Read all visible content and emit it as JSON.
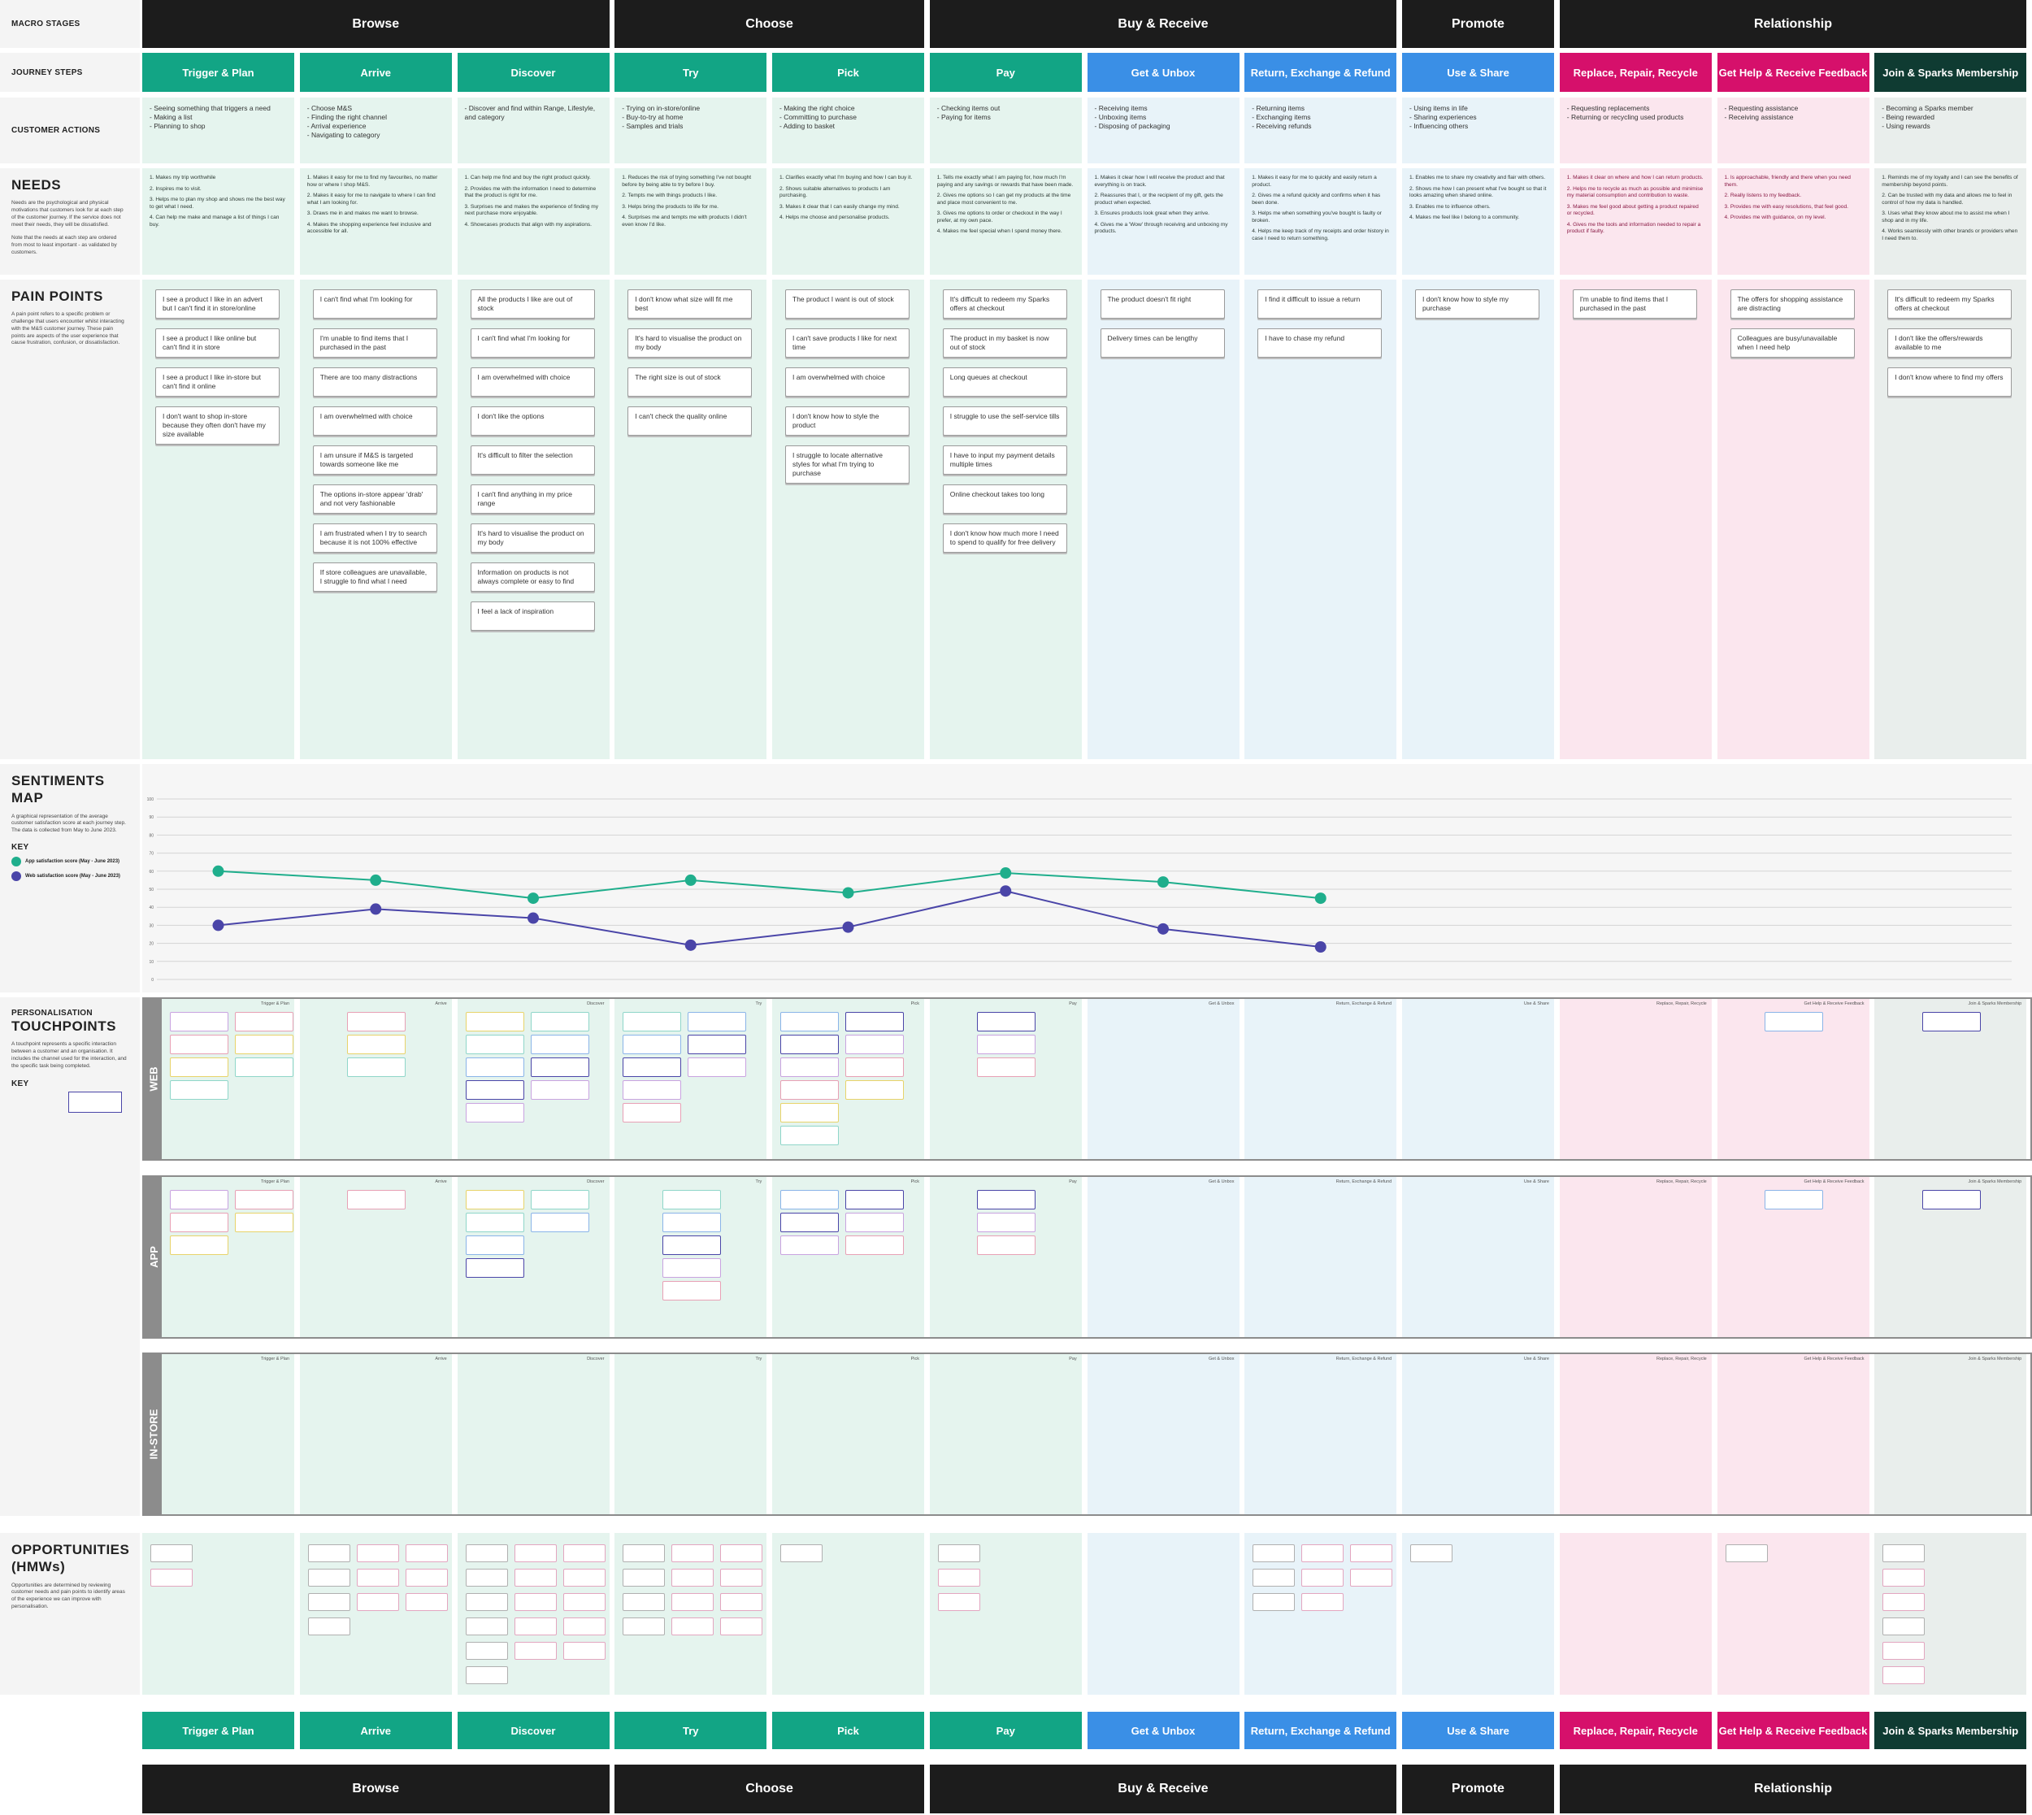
{
  "labels": {
    "macro": "MACRO STAGES",
    "steps": "JOURNEY STEPS",
    "actions": "CUSTOMER ACTIONS",
    "needs": {
      "title": "NEEDS",
      "text": [
        "Needs are the psychological and physical motivations that customers look for at each step of the customer journey. If the service does not meet their needs, they will be dissatisfied.",
        "Note that the needs at each step are ordered from most to least important - as validated by customers."
      ]
    },
    "pain": {
      "title": "PAIN POINTS",
      "text": [
        "A pain point refers to a specific problem or challenge that users encounter whilst interacting with the M&S customer journey. These pain points are aspects of the user experience that cause frustration, confusion, or dissatisfaction."
      ]
    },
    "sentiment": {
      "title": "SENTIMENTS MAP",
      "text": [
        "A graphical representation of the average customer satisfaction score at each journey step. The data is collected from May to June 2023."
      ],
      "key": "KEY"
    },
    "touchpoints": {
      "kicker": "PERSONALISATION",
      "title": "TOUCHPOINTS",
      "text": [
        "A touchpoint represents a specific interaction between a customer and an organisation. It includes the channel used for the interaction, and the specific task being completed."
      ],
      "key": "KEY"
    },
    "opportunities": {
      "title": "OPPORTUNITIES (HMWs)",
      "text": [
        "Opportunities are determined by reviewing customer needs and pain points to identify areas of the experience we can improve with personalisation."
      ]
    }
  },
  "macro_stages": [
    "Browse",
    "Choose",
    "Buy & Receive",
    "Promote",
    "Relationship"
  ],
  "channels": [
    "WEB",
    "APP",
    "IN-STORE"
  ],
  "columns": [
    {
      "step": "Trigger & Plan",
      "color": "#12a585",
      "actions": [
        "- Seeing something that triggers a need",
        "- Making a list",
        "- Planning to shop"
      ],
      "needs": [
        "1. Makes my trip worthwhile",
        "2. Inspires me to visit.",
        "3. Helps me to plan my shop and shows me the best way to get what I need.",
        "4. Can help me make and manage a list of things I can buy."
      ],
      "pain_points": [
        "I see a product I like in an advert but I can't find it in store/online",
        "I see a product I like online but can't find it in store",
        "I see a product I like in-store but can't find it online",
        "I don't want to shop in-store because they often don't have my size available"
      ]
    },
    {
      "step": "Arrive",
      "color": "#12a585",
      "actions": [
        "- Choose M&S",
        "- Finding the right channel",
        "- Arrival experience",
        "- Navigating to category"
      ],
      "needs": [
        "1. Makes it easy for me to find my favourites, no matter how or where I shop M&S.",
        "2. Makes it easy for me to navigate to where I can find what I am looking for.",
        "3. Draws me in and makes me want to browse.",
        "4. Makes the shopping experience feel inclusive and accessible for all."
      ],
      "pain_points": [
        "I can't find what I'm looking for",
        "I'm unable to find items that I purchased in the past",
        "There are too many distractions",
        "I am overwhelmed with choice",
        "I am unsure if M&S is targeted towards someone like me",
        "The options in-store appear 'drab' and not very fashionable",
        "I am frustrated when I try to search because it is not 100% effective",
        "If store colleagues are unavailable, I struggle to find what I need"
      ]
    },
    {
      "step": "Discover",
      "color": "#12a585",
      "actions": [
        "- Discover and find within Range, Lifestyle, and category"
      ],
      "needs": [
        "1. Can help me find and buy the right product quickly.",
        "2. Provides me with the information I need to determine that the product is right for me.",
        "3. Surprises me and makes the experience of finding my next purchase more enjoyable.",
        "4. Showcases products that align with my aspirations."
      ],
      "pain_points": [
        "All the products I like are out of stock",
        "I can't find what I'm looking for",
        "I am overwhelmed with choice",
        "I don't like the options",
        "It's difficult to filter the selection",
        "I can't find anything in my price range",
        "It's hard to visualise the product on my body",
        "Information on products is not always complete or easy to find",
        "I feel a lack of inspiration"
      ]
    },
    {
      "step": "Try",
      "color": "#12a585",
      "actions": [
        "- Trying on in-store/online",
        "- Buy-to-try at home",
        "- Samples and trials"
      ],
      "needs": [
        "1. Reduces the risk of trying something I've not bought before by being able to try before I buy.",
        "2. Tempts me with things products I like.",
        "3. Helps bring the products to life for me.",
        "4. Surprises me and tempts me with products I didn't even know I'd like."
      ],
      "pain_points": [
        "I don't know what size will fit me best",
        "It's hard to visualise the product on my body",
        "The right size is out of stock",
        "I can't check the quality online"
      ]
    },
    {
      "step": "Pick",
      "color": "#12a585",
      "actions": [
        "- Making the right choice",
        "- Committing to purchase",
        "- Adding to basket"
      ],
      "needs": [
        "1. Clarifies exactly what I'm buying and how I can buy it.",
        "2. Shows suitable alternatives to products I am purchasing.",
        "3. Makes it clear that I can easily change my mind.",
        "4. Helps me choose and personalise products."
      ],
      "pain_points": [
        "The product I want is out of stock",
        "I can't save products I like for next time",
        "I am overwhelmed with choice",
        "I don't know how to style the product",
        "I struggle to locate alternative styles for what I'm trying to purchase"
      ]
    },
    {
      "step": "Pay",
      "color": "#12a585",
      "actions": [
        "- Checking items out",
        "- Paying for items"
      ],
      "needs": [
        "1. Tells me exactly what I am paying for, how much I'm paying and any savings or rewards that have been made.",
        "2. Gives me options so I can get my products at the time and place most convenient to me.",
        "3. Gives me options to order or checkout in the way I prefer, at my own pace.",
        "4. Makes me feel special when I spend money there."
      ],
      "pain_points": [
        "It's difficult to redeem my Sparks offers at checkout",
        "The product in my basket is now out of stock",
        "Long queues at checkout",
        "I struggle to use the self-service tills",
        "I have to input my payment details multiple times",
        "Online checkout takes too long",
        "I don't know how much more I need to spend to qualify for free delivery"
      ]
    },
    {
      "step": "Get & Unbox",
      "color": "#3a8fe6",
      "actions": [
        "- Receiving items",
        "- Unboxing items",
        "- Disposing of packaging"
      ],
      "needs": [
        "1. Makes it clear how I will receive the product and that everything is on track.",
        "2. Reassures that I, or the recipient of my gift, gets the product when expected.",
        "3. Ensures products look great when they arrive.",
        "4. Gives me a 'Wow' through receiving and unboxing my products."
      ],
      "pain_points": [
        "The product doesn't fit right",
        "Delivery times can be lengthy"
      ]
    },
    {
      "step": "Return, Exchange & Refund",
      "color": "#3a8fe6",
      "actions": [
        "- Returning items",
        "- Exchanging items",
        "- Receiving refunds"
      ],
      "needs": [
        "1. Makes it easy for me to quickly and easily return a product.",
        "2. Gives me a refund quickly and confirms when it has been done.",
        "3. Helps me when something you've bought is faulty or broken.",
        "4. Helps me keep track of my receipts and order history in case I need to return something."
      ],
      "pain_points": [
        "I find it difficult to issue a return",
        "I have to chase my refund"
      ]
    },
    {
      "step": "Use & Share",
      "color": "#3a8fe6",
      "actions": [
        "- Using items in life",
        "- Sharing experiences",
        "- Influencing others"
      ],
      "needs": [
        "1. Enables me to share my creativity and flair with others.",
        "2. Shows me how I can present what I've bought so that it looks amazing when shared online.",
        "3. Enables me to influence others.",
        "4. Makes me feel like I belong to a community."
      ],
      "pain_points": [
        "I don't know how to style my purchase"
      ]
    },
    {
      "step": "Replace, Repair, Recycle",
      "color": "#d6106b",
      "actions": [
        "- Requesting replacements",
        "- Returning or recycling used products"
      ],
      "needs": [
        "1. Makes it clear on where and how I can return products.",
        "2. Helps me to recycle as much as possible and minimise my material consumption and contribution to waste.",
        "3. Makes me feel good about getting a product repaired or recycled.",
        "4. Gives me the tools and information needed to repair a product if faulty."
      ],
      "pain_points": [
        "I'm unable to find items that I purchased in the past"
      ]
    },
    {
      "step": "Get Help & Receive Feedback",
      "color": "#d6106b",
      "actions": [
        "- Requesting assistance",
        "- Receiving assistance"
      ],
      "needs": [
        "1. Is approachable, friendly and there when you need them.",
        "2. Really listens to my feedback.",
        "3. Provides me with easy resolutions, that feel good.",
        "4. Provides me with guidance, on my level."
      ],
      "pain_points": [
        "The offers for shopping assistance are distracting",
        "Colleagues are busy/unavailable when I need help"
      ]
    },
    {
      "step": "Join & Sparks Membership",
      "color": "#0f3b32",
      "actions": [
        "- Becoming a Sparks member",
        "- Being rewarded",
        "- Using rewards"
      ],
      "needs": [
        "1. Reminds me of my loyalty and I can see the benefits of membership beyond points.",
        "2. Can be trusted with my data and allows me to feel in control of how my data is handled.",
        "3. Uses what they know about me to assist me when I shop and in my life.",
        "4. Works seamlessly with other brands or providers when I need them to."
      ],
      "pain_points": [
        "It's difficult to redeem my Sparks offers at checkout",
        "I don't like the offers/rewards available to me",
        "I don't know where to find my offers"
      ]
    }
  ],
  "sentiment": {
    "type": "line",
    "ylim": [
      0,
      100
    ],
    "yticks": [
      0,
      10,
      20,
      30,
      40,
      50,
      60,
      70,
      80,
      90,
      100
    ],
    "grid": true,
    "series": [
      {
        "name": "App satisfaction score (May - June 2023)",
        "color": "#1fae8c",
        "values": [
          60,
          55,
          45,
          55,
          48,
          59,
          54,
          45
        ]
      },
      {
        "name": "Web satisfaction score (May - June 2023)",
        "color": "#4a45a8",
        "values": [
          30,
          39,
          34,
          19,
          29,
          49,
          28,
          18
        ]
      }
    ]
  }
}
